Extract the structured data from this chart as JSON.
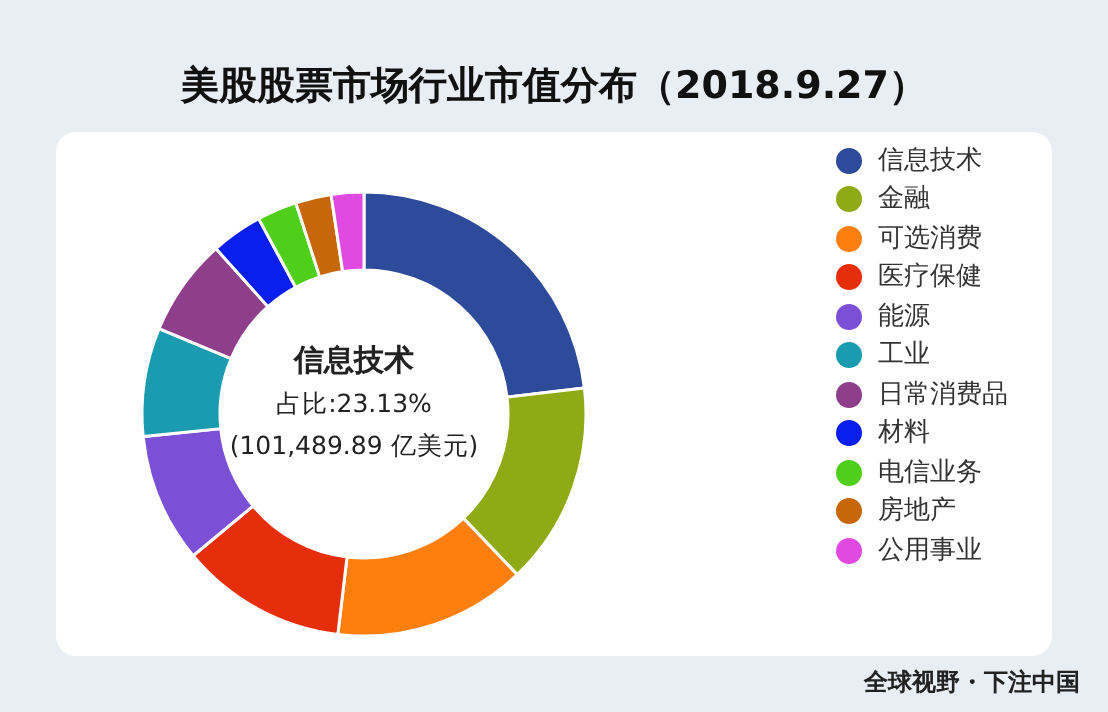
{
  "chart_data": {
    "type": "donut",
    "title": "美股股票市场行业市值分布（2018.9.27）",
    "categories": [
      "信息技术",
      "金融",
      "可选消费",
      "医疗保健",
      "能源",
      "工业",
      "日常消费品",
      "材料",
      "电信业务",
      "房地产",
      "公用事业"
    ],
    "values": [
      23.13,
      14.75,
      14.0,
      12.1,
      9.4,
      7.9,
      7.1,
      3.75,
      2.9,
      2.6,
      2.37
    ],
    "colors": [
      "#2e4a9a",
      "#8faa14",
      "#ff7f0e",
      "#e62e0a",
      "#7b4fd6",
      "#1a9bb0",
      "#8e3e8a",
      "#0a1ef0",
      "#4fcf1a",
      "#c8660a",
      "#e04ae0"
    ],
    "annotations": [
      "信息技术",
      "占比:23.13%",
      "(101,489.89 亿美元)",
      "全球视野・下注中国"
    ],
    "legend": "right"
  }
}
